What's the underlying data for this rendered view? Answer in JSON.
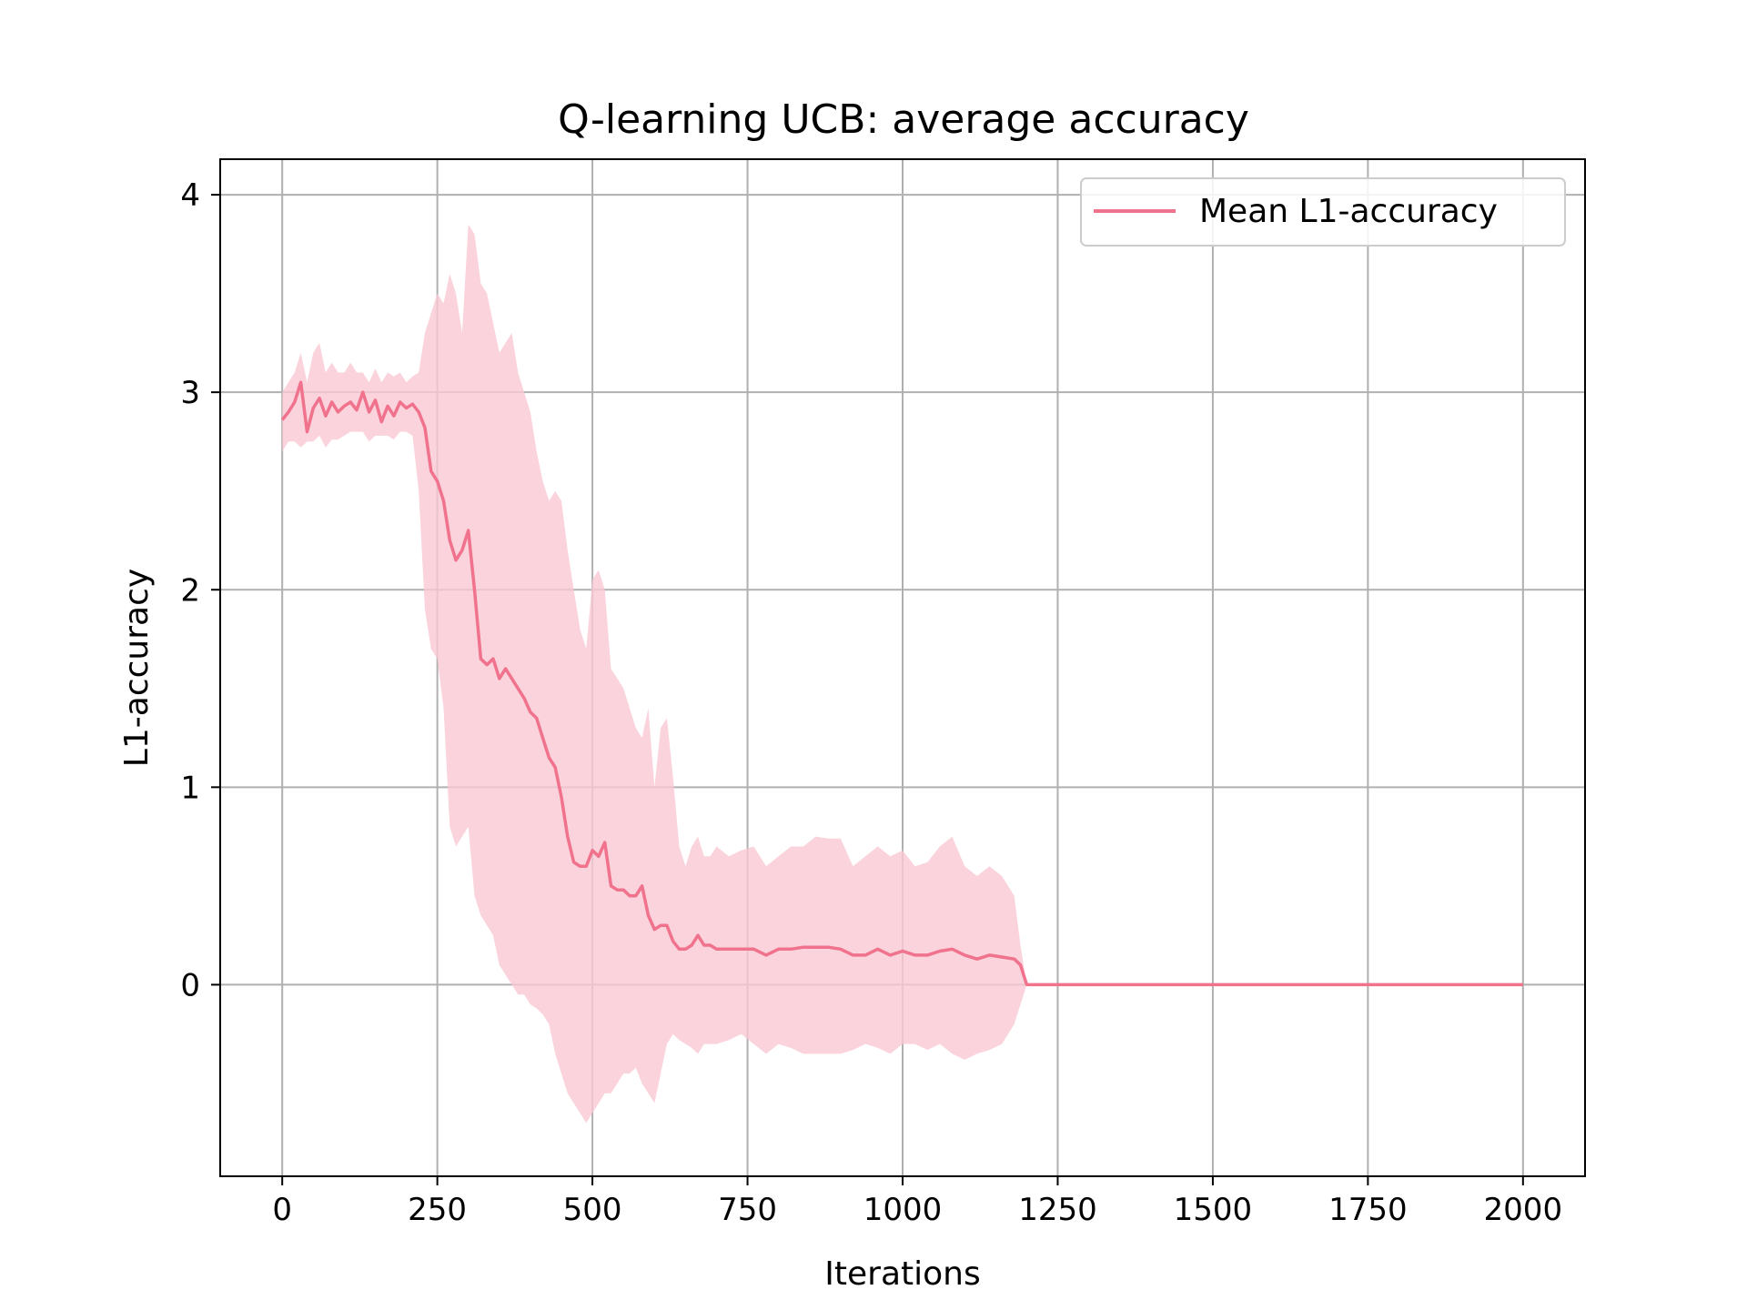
{
  "chart_data": {
    "type": "line",
    "title": "Q-learning UCB: average accuracy",
    "xlabel": "Iterations",
    "ylabel": "L1-accuracy",
    "xlim": [
      -100,
      2100
    ],
    "ylim": [
      -0.97,
      4.18
    ],
    "xticks": [
      0,
      250,
      500,
      750,
      1000,
      1250,
      1500,
      1750,
      2000
    ],
    "xtick_labels": [
      "0",
      "250",
      "500",
      "750",
      "1000",
      "1250",
      "1500",
      "1750",
      "2000"
    ],
    "yticks": [
      0,
      1,
      2,
      3,
      4
    ],
    "ytick_labels": [
      "0",
      "1",
      "2",
      "3",
      "4"
    ],
    "grid": true,
    "legend_position": "top-right",
    "colors": {
      "line": "#f0728c",
      "band": "#f9c8d3"
    },
    "series": [
      {
        "name": "Mean L1-accuracy",
        "x": [
          0,
          10,
          20,
          30,
          40,
          50,
          60,
          70,
          80,
          90,
          100,
          110,
          120,
          130,
          140,
          150,
          160,
          170,
          180,
          190,
          200,
          210,
          220,
          230,
          240,
          250,
          260,
          270,
          280,
          290,
          300,
          310,
          320,
          330,
          340,
          350,
          360,
          370,
          380,
          390,
          400,
          410,
          420,
          430,
          440,
          450,
          460,
          470,
          480,
          490,
          500,
          510,
          520,
          530,
          540,
          550,
          560,
          570,
          580,
          590,
          600,
          610,
          620,
          630,
          640,
          650,
          660,
          670,
          680,
          690,
          700,
          720,
          740,
          760,
          780,
          800,
          820,
          840,
          860,
          880,
          900,
          920,
          940,
          960,
          980,
          1000,
          1020,
          1040,
          1060,
          1080,
          1100,
          1120,
          1140,
          1160,
          1180,
          1190,
          1200,
          1300,
          1400,
          1500,
          1600,
          1700,
          1800,
          1900,
          2000
        ],
        "y": [
          2.86,
          2.9,
          2.95,
          3.05,
          2.8,
          2.92,
          2.97,
          2.88,
          2.95,
          2.9,
          2.93,
          2.95,
          2.91,
          3.0,
          2.9,
          2.96,
          2.85,
          2.93,
          2.88,
          2.95,
          2.92,
          2.94,
          2.9,
          2.82,
          2.6,
          2.55,
          2.45,
          2.25,
          2.15,
          2.2,
          2.3,
          2.0,
          1.65,
          1.62,
          1.65,
          1.55,
          1.6,
          1.55,
          1.5,
          1.45,
          1.38,
          1.35,
          1.25,
          1.15,
          1.1,
          0.95,
          0.75,
          0.62,
          0.6,
          0.6,
          0.68,
          0.65,
          0.72,
          0.5,
          0.48,
          0.48,
          0.45,
          0.45,
          0.5,
          0.35,
          0.28,
          0.3,
          0.3,
          0.22,
          0.18,
          0.18,
          0.2,
          0.25,
          0.2,
          0.2,
          0.18,
          0.18,
          0.18,
          0.18,
          0.15,
          0.18,
          0.18,
          0.19,
          0.19,
          0.19,
          0.18,
          0.15,
          0.15,
          0.18,
          0.15,
          0.17,
          0.15,
          0.15,
          0.17,
          0.18,
          0.15,
          0.13,
          0.15,
          0.14,
          0.13,
          0.1,
          0.0,
          0.0,
          0.0,
          0.0,
          0.0,
          0.0,
          0.0,
          0.0,
          0.0
        ],
        "lower": [
          2.7,
          2.75,
          2.75,
          2.72,
          2.75,
          2.75,
          2.78,
          2.72,
          2.76,
          2.76,
          2.78,
          2.8,
          2.8,
          2.8,
          2.75,
          2.78,
          2.78,
          2.78,
          2.76,
          2.8,
          2.8,
          2.78,
          2.5,
          1.9,
          1.7,
          1.65,
          1.4,
          0.8,
          0.7,
          0.75,
          0.8,
          0.45,
          0.35,
          0.3,
          0.25,
          0.1,
          0.05,
          0.0,
          -0.05,
          -0.05,
          -0.1,
          -0.12,
          -0.15,
          -0.2,
          -0.35,
          -0.45,
          -0.55,
          -0.6,
          -0.65,
          -0.7,
          -0.65,
          -0.6,
          -0.55,
          -0.55,
          -0.5,
          -0.45,
          -0.45,
          -0.42,
          -0.5,
          -0.55,
          -0.6,
          -0.45,
          -0.3,
          -0.25,
          -0.28,
          -0.3,
          -0.32,
          -0.35,
          -0.3,
          -0.3,
          -0.3,
          -0.28,
          -0.25,
          -0.3,
          -0.35,
          -0.3,
          -0.32,
          -0.35,
          -0.35,
          -0.35,
          -0.35,
          -0.33,
          -0.3,
          -0.32,
          -0.35,
          -0.3,
          -0.3,
          -0.33,
          -0.3,
          -0.35,
          -0.38,
          -0.35,
          -0.33,
          -0.3,
          -0.2,
          -0.1,
          0.0,
          0.0,
          0.0,
          0.0,
          0.0,
          0.0,
          0.0,
          0.0,
          0.0
        ],
        "upper": [
          3.0,
          3.05,
          3.1,
          3.2,
          3.05,
          3.2,
          3.25,
          3.1,
          3.15,
          3.1,
          3.1,
          3.15,
          3.1,
          3.1,
          3.05,
          3.12,
          3.05,
          3.1,
          3.08,
          3.1,
          3.05,
          3.08,
          3.1,
          3.3,
          3.4,
          3.5,
          3.45,
          3.6,
          3.5,
          3.3,
          3.85,
          3.8,
          3.55,
          3.5,
          3.35,
          3.2,
          3.25,
          3.3,
          3.1,
          3.0,
          2.9,
          2.7,
          2.55,
          2.45,
          2.5,
          2.45,
          2.2,
          2.0,
          1.8,
          1.7,
          2.05,
          2.1,
          2.0,
          1.6,
          1.55,
          1.5,
          1.4,
          1.3,
          1.25,
          1.4,
          1.0,
          1.3,
          1.35,
          1.05,
          0.7,
          0.6,
          0.7,
          0.75,
          0.65,
          0.65,
          0.7,
          0.65,
          0.68,
          0.7,
          0.6,
          0.65,
          0.7,
          0.7,
          0.75,
          0.74,
          0.74,
          0.6,
          0.65,
          0.7,
          0.65,
          0.68,
          0.6,
          0.62,
          0.7,
          0.75,
          0.6,
          0.55,
          0.6,
          0.55,
          0.45,
          0.2,
          0.0,
          0.0,
          0.0,
          0.0,
          0.0,
          0.0,
          0.0,
          0.0,
          0.0
        ]
      }
    ]
  }
}
